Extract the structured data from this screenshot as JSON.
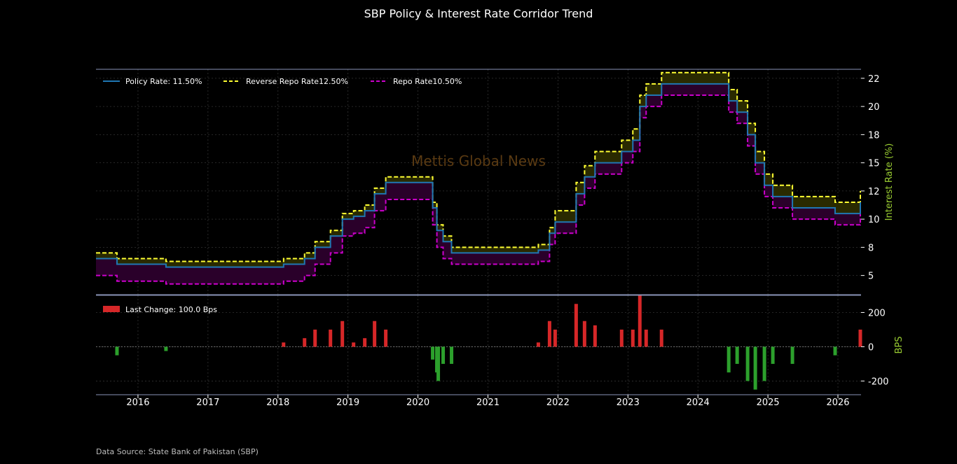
{
  "title": "SBP Policy & Interest Rate Corridor Trend",
  "source": "Data Source: State Bank of Pakistan (SBP)",
  "watermark": "Mettis Global News",
  "colors": {
    "background": "#000000",
    "policy": "#1f77b4",
    "reverse_repo": "#ffff33",
    "repo": "#cc00cc",
    "upper_fill": "#2a2a00",
    "lower_fill": "#2a002a",
    "increase": "#d62728",
    "decrease": "#2ca02c",
    "axis_label": "#9acd32",
    "frame": "#8a95b8",
    "watermark": "#5a3a12"
  },
  "chart_data": [
    {
      "type": "line",
      "step": "post",
      "title": "SBP Policy & Interest Rate Corridor Trend",
      "ylabel": "Interest Rate (%)",
      "xlim": [
        2015.4,
        2026.33
      ],
      "ylim": [
        3.3,
        23.3
      ],
      "yticks": [
        {
          "value": 5,
          "label": "5"
        },
        {
          "value": 7.5,
          "label": "8"
        },
        {
          "value": 10,
          "label": "10"
        },
        {
          "value": 12.5,
          "label": "12"
        },
        {
          "value": 15,
          "label": "15"
        },
        {
          "value": 17.5,
          "label": "18"
        },
        {
          "value": 20,
          "label": "20"
        },
        {
          "value": 22.5,
          "label": "22"
        }
      ],
      "xticks": [
        {
          "value": 2016,
          "label": "2016"
        },
        {
          "value": 2017,
          "label": "2017"
        },
        {
          "value": 2018,
          "label": "2018"
        },
        {
          "value": 2019,
          "label": "2019"
        },
        {
          "value": 2020,
          "label": "2020"
        },
        {
          "value": 2021,
          "label": "2021"
        },
        {
          "value": 2022,
          "label": "2022"
        },
        {
          "value": 2023,
          "label": "2023"
        },
        {
          "value": 2024,
          "label": "2024"
        },
        {
          "value": 2025,
          "label": "2025"
        },
        {
          "value": 2026,
          "label": "2026"
        }
      ],
      "x": [
        2015.4,
        2015.7,
        2016.4,
        2018.08,
        2018.38,
        2018.53,
        2018.75,
        2018.92,
        2019.08,
        2019.24,
        2019.38,
        2019.54,
        2020.21,
        2020.27,
        2020.36,
        2020.48,
        2021.72,
        2021.88,
        2021.96,
        2022.26,
        2022.38,
        2022.53,
        2022.91,
        2023.07,
        2023.17,
        2023.26,
        2023.48,
        2024.44,
        2024.56,
        2024.71,
        2024.82,
        2024.95,
        2025.07,
        2025.35,
        2025.96,
        2026.32
      ],
      "legend": [
        {
          "name": "Policy Rate: 11.50%",
          "style": "solid",
          "color_key": "policy"
        },
        {
          "name": "Reverse Repo Rate12.50%",
          "style": "dashed",
          "color_key": "reverse_repo"
        },
        {
          "name": "Repo Rate10.50%",
          "style": "dashed",
          "color_key": "repo"
        }
      ],
      "series": [
        {
          "name": "Policy Rate",
          "values": [
            6.5,
            6.0,
            5.75,
            6.0,
            6.5,
            7.5,
            8.5,
            10.0,
            10.25,
            10.75,
            12.25,
            13.25,
            11.0,
            9.0,
            8.0,
            7.0,
            7.25,
            8.75,
            9.75,
            12.25,
            13.75,
            15.0,
            16.0,
            17.0,
            20.0,
            21.0,
            22.0,
            20.5,
            19.5,
            17.5,
            15.0,
            13.0,
            12.0,
            11.0,
            10.5,
            11.5
          ]
        },
        {
          "name": "Reverse Repo Rate",
          "values": [
            7.0,
            6.5,
            6.25,
            6.5,
            7.0,
            8.0,
            9.0,
            10.5,
            10.75,
            11.25,
            12.75,
            13.75,
            11.5,
            9.5,
            8.5,
            7.5,
            7.75,
            9.25,
            10.75,
            13.25,
            14.75,
            16.0,
            17.0,
            18.0,
            21.0,
            22.0,
            23.0,
            21.5,
            20.5,
            18.5,
            16.0,
            14.0,
            13.0,
            12.0,
            11.5,
            12.5
          ]
        },
        {
          "name": "Repo Rate",
          "values": [
            5.0,
            4.5,
            4.25,
            4.5,
            5.0,
            6.0,
            7.0,
            8.5,
            8.75,
            9.25,
            10.75,
            11.75,
            9.5,
            7.5,
            6.5,
            6.0,
            6.25,
            7.75,
            8.75,
            11.25,
            12.75,
            14.0,
            15.0,
            16.0,
            19.0,
            20.0,
            21.0,
            19.5,
            18.5,
            16.5,
            14.0,
            12.0,
            11.0,
            10.0,
            9.5,
            10.5
          ]
        }
      ]
    },
    {
      "type": "bar",
      "ylabel": "BPS",
      "xlim": [
        2015.4,
        2026.33
      ],
      "ylim": [
        -280,
        300
      ],
      "yticks": [
        {
          "value": 200,
          "label": "200"
        },
        {
          "value": 0,
          "label": "0"
        },
        {
          "value": -200,
          "label": "-200"
        }
      ],
      "legend": [
        {
          "name": "Last Change: 100.0 Bps",
          "color_key": "increase"
        }
      ],
      "x": [
        2015.7,
        2016.4,
        2018.08,
        2018.38,
        2018.53,
        2018.75,
        2018.92,
        2019.08,
        2019.24,
        2019.38,
        2019.54,
        2020.21,
        2020.27,
        2020.29,
        2020.36,
        2020.48,
        2021.72,
        2021.88,
        2021.96,
        2022.26,
        2022.38,
        2022.53,
        2022.91,
        2023.07,
        2023.17,
        2023.26,
        2023.48,
        2024.44,
        2024.56,
        2024.71,
        2024.82,
        2024.95,
        2025.07,
        2025.35,
        2025.96,
        2026.32
      ],
      "values": [
        -50,
        -25,
        25,
        50,
        100,
        100,
        150,
        25,
        50,
        150,
        100,
        -75,
        -150,
        -200,
        -100,
        -100,
        25,
        150,
        100,
        250,
        150,
        125,
        100,
        100,
        300,
        100,
        100,
        -150,
        -100,
        -200,
        -250,
        -200,
        -100,
        -100,
        -50,
        100
      ]
    }
  ]
}
